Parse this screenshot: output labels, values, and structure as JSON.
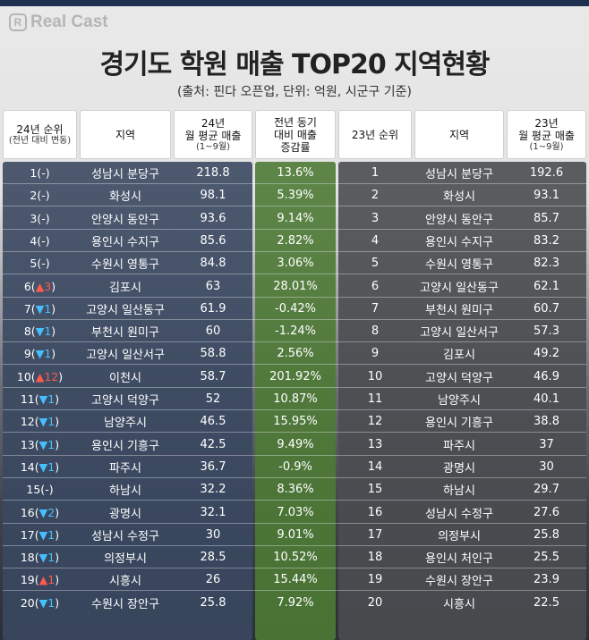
{
  "brand": {
    "logo_mark": "R",
    "name": "Real Cast"
  },
  "title": "경기도 학원 매출 TOP20 지역현황",
  "subtitle": "(출처: 핀다 오픈업, 단위: 억원, 시군구 기준)",
  "headers": {
    "rank24_line1": "24년 순위",
    "rank24_line2": "(전년 대비 변동)",
    "region24": "지역",
    "sales24_line1": "24년",
    "sales24_line2": "월 평균 매출",
    "sales24_line3": "(1~9월)",
    "change_line1": "전년 동기",
    "change_line2": "대비 매출",
    "change_line3": "증감률",
    "rank23": "23년 순위",
    "region23": "지역",
    "sales23_line1": "23년",
    "sales23_line2": "월 평균 매출",
    "sales23_line3": "(1~9월)"
  },
  "colors": {
    "left_panel": "#3a4860",
    "change_column": "#4e7a35",
    "right_panel": "#4a4d50",
    "rise_marker": "#ff5a4a",
    "fall_marker": "#45c0ff"
  },
  "rows": [
    {
      "rank": "1",
      "prefix": "(",
      "mark": "-",
      "dir": "none",
      "delta": "",
      "suffix": ")",
      "region": "성남시 분당구",
      "sales": "218.8",
      "change": "13.6%",
      "rank23": "1",
      "region23": "성남시 분당구",
      "sales23": "192.6"
    },
    {
      "rank": "2",
      "prefix": "(",
      "mark": "-",
      "dir": "none",
      "delta": "",
      "suffix": ")",
      "region": "화성시",
      "sales": "98.1",
      "change": "5.39%",
      "rank23": "2",
      "region23": "화성시",
      "sales23": "93.1"
    },
    {
      "rank": "3",
      "prefix": "(",
      "mark": "-",
      "dir": "none",
      "delta": "",
      "suffix": ")",
      "region": "안양시 동안구",
      "sales": "93.6",
      "change": "9.14%",
      "rank23": "3",
      "region23": "안양시 동안구",
      "sales23": "85.7"
    },
    {
      "rank": "4",
      "prefix": "(",
      "mark": "-",
      "dir": "none",
      "delta": "",
      "suffix": ")",
      "region": "용인시 수지구",
      "sales": "85.6",
      "change": "2.82%",
      "rank23": "4",
      "region23": "용인시 수지구",
      "sales23": "83.2"
    },
    {
      "rank": "5",
      "prefix": "(",
      "mark": "-",
      "dir": "none",
      "delta": "",
      "suffix": ")",
      "region": "수원시 영통구",
      "sales": "84.8",
      "change": "3.06%",
      "rank23": "5",
      "region23": "수원시 영통구",
      "sales23": "82.3"
    },
    {
      "rank": "6",
      "prefix": "(",
      "mark": "▲",
      "dir": "up",
      "delta": "3",
      "suffix": ")",
      "region": "김포시",
      "sales": "63",
      "change": "28.01%",
      "rank23": "6",
      "region23": "고양시 일산동구",
      "sales23": "62.1"
    },
    {
      "rank": "7",
      "prefix": "(",
      "mark": "▼",
      "dir": "down",
      "delta": "1",
      "suffix": ")",
      "region": "고양시 일산동구",
      "sales": "61.9",
      "change": "-0.42%",
      "rank23": "7",
      "region23": "부천시 원미구",
      "sales23": "60.7"
    },
    {
      "rank": "8",
      "prefix": "(",
      "mark": "▼",
      "dir": "down",
      "delta": "1",
      "suffix": ")",
      "region": "부천시 원미구",
      "sales": "60",
      "change": "-1.24%",
      "rank23": "8",
      "region23": "고양시 일산서구",
      "sales23": "57.3"
    },
    {
      "rank": "9",
      "prefix": "(",
      "mark": "▼",
      "dir": "down",
      "delta": "1",
      "suffix": ")",
      "region": "고양시 일산서구",
      "sales": "58.8",
      "change": "2.56%",
      "rank23": "9",
      "region23": "김포시",
      "sales23": "49.2"
    },
    {
      "rank": "10",
      "prefix": "(",
      "mark": "▲",
      "dir": "up",
      "delta": "12",
      "suffix": ")",
      "region": "이천시",
      "sales": "58.7",
      "change": "201.92%",
      "rank23": "10",
      "region23": "고양시 덕양구",
      "sales23": "46.9"
    },
    {
      "rank": "11",
      "prefix": "(",
      "mark": "▼",
      "dir": "down",
      "delta": "1",
      "suffix": ")",
      "region": "고양시 덕양구",
      "sales": "52",
      "change": "10.87%",
      "rank23": "11",
      "region23": "남양주시",
      "sales23": "40.1"
    },
    {
      "rank": "12",
      "prefix": "(",
      "mark": "▼",
      "dir": "down",
      "delta": "1",
      "suffix": ")",
      "region": "남양주시",
      "sales": "46.5",
      "change": "15.95%",
      "rank23": "12",
      "region23": "용인시 기흥구",
      "sales23": "38.8"
    },
    {
      "rank": "13",
      "prefix": "(",
      "mark": "▼",
      "dir": "down",
      "delta": "1",
      "suffix": ")",
      "region": "용인시 기흥구",
      "sales": "42.5",
      "change": "9.49%",
      "rank23": "13",
      "region23": "파주시",
      "sales23": "37"
    },
    {
      "rank": "14",
      "prefix": "(",
      "mark": "▼",
      "dir": "down",
      "delta": "1",
      "suffix": ")",
      "region": "파주시",
      "sales": "36.7",
      "change": "-0.9%",
      "rank23": "14",
      "region23": "광명시",
      "sales23": "30"
    },
    {
      "rank": "15",
      "prefix": "(",
      "mark": "-",
      "dir": "none",
      "delta": "",
      "suffix": ")",
      "region": "하남시",
      "sales": "32.2",
      "change": "8.36%",
      "rank23": "15",
      "region23": "하남시",
      "sales23": "29.7"
    },
    {
      "rank": "16",
      "prefix": "(",
      "mark": "▼",
      "dir": "down",
      "delta": "2",
      "suffix": ")",
      "region": "광명시",
      "sales": "32.1",
      "change": "7.03%",
      "rank23": "16",
      "region23": "성남시 수정구",
      "sales23": "27.6"
    },
    {
      "rank": "17",
      "prefix": "(",
      "mark": "▼",
      "dir": "down",
      "delta": "1",
      "suffix": ")",
      "region": "성남시 수정구",
      "sales": "30",
      "change": "9.01%",
      "rank23": "17",
      "region23": "의정부시",
      "sales23": "25.8"
    },
    {
      "rank": "18",
      "prefix": "(",
      "mark": "▼",
      "dir": "down",
      "delta": "1",
      "suffix": ")",
      "region": "의정부시",
      "sales": "28.5",
      "change": "10.52%",
      "rank23": "18",
      "region23": "용인시 처인구",
      "sales23": "25.5"
    },
    {
      "rank": "19",
      "prefix": "(",
      "mark": "▲",
      "dir": "up",
      "delta": "1",
      "suffix": ")",
      "region": "시흥시",
      "sales": "26",
      "change": "15.44%",
      "rank23": "19",
      "region23": "수원시 장안구",
      "sales23": "23.9"
    },
    {
      "rank": "20",
      "prefix": "(",
      "mark": "▼",
      "dir": "down",
      "delta": "1",
      "suffix": ")",
      "region": "수원시 장안구",
      "sales": "25.8",
      "change": "7.92%",
      "rank23": "20",
      "region23": "시흥시",
      "sales23": "22.5"
    }
  ]
}
